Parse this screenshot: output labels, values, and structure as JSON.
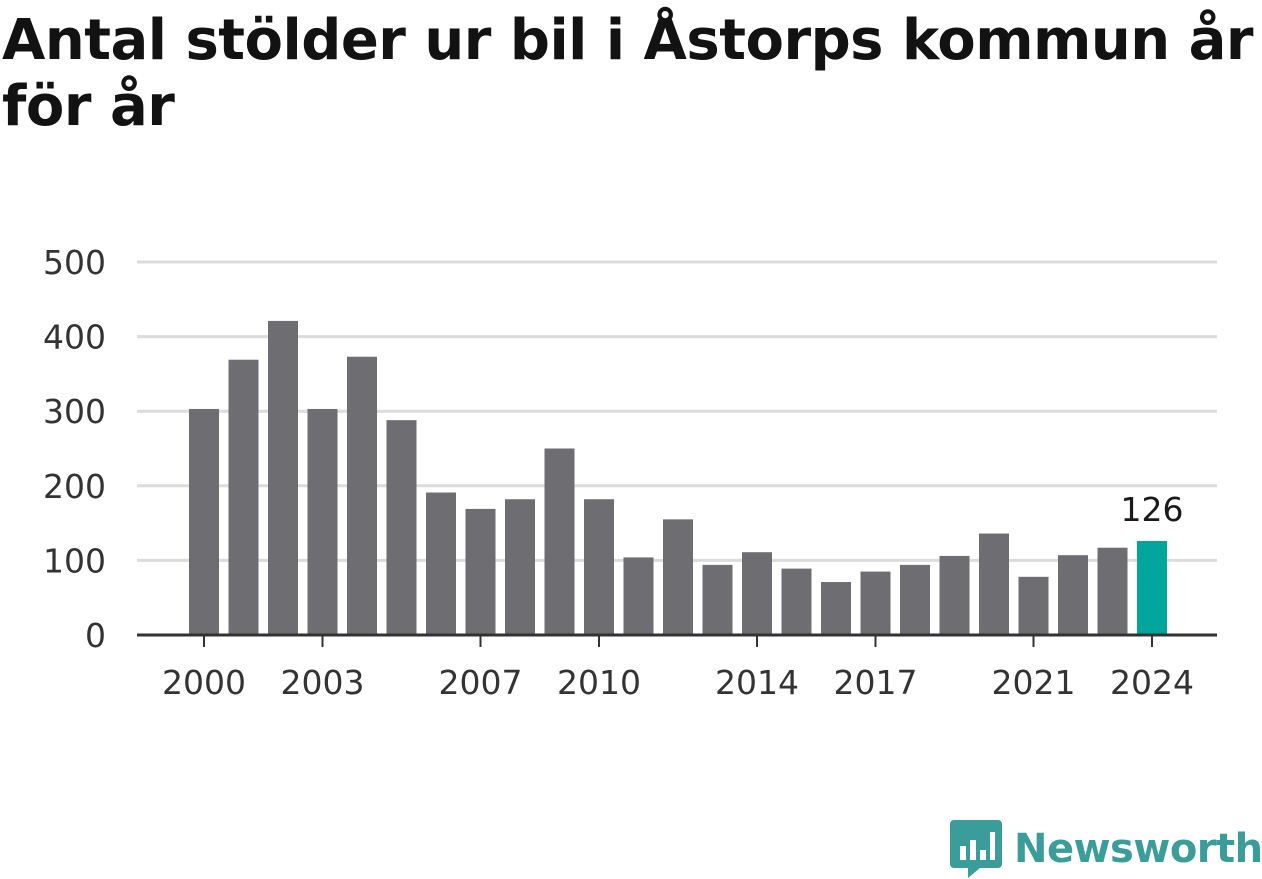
{
  "title": "Antal stölder ur bil i Åstorps kommun år för år",
  "brand": {
    "name": "Newsworthy"
  },
  "colors": {
    "bar": "#6e6d72",
    "highlight": "#00a69c",
    "grid": "#dcdcdc",
    "axis": "#333333",
    "tick_text": "#333333",
    "brand": "#3a9d99"
  },
  "chart_data": {
    "type": "bar",
    "title": "Antal stölder ur bil i Åstorps kommun år för år",
    "xlabel": "",
    "ylabel": "",
    "categories": [
      "2000",
      "2001",
      "2002",
      "2003",
      "2004",
      "2005",
      "2006",
      "2007",
      "2008",
      "2009",
      "2010",
      "2011",
      "2012",
      "2013",
      "2014",
      "2015",
      "2016",
      "2017",
      "2018",
      "2019",
      "2020",
      "2021",
      "2022",
      "2023",
      "2024"
    ],
    "values": [
      303,
      369,
      421,
      303,
      373,
      288,
      191,
      169,
      182,
      250,
      182,
      104,
      155,
      94,
      111,
      89,
      71,
      85,
      94,
      106,
      136,
      78,
      107,
      117,
      126
    ],
    "x_tick_labels": [
      "2000",
      "2003",
      "2007",
      "2010",
      "2014",
      "2017",
      "2021",
      "2024"
    ],
    "y_ticks": [
      0,
      100,
      200,
      300,
      400,
      500
    ],
    "ylim": [
      0,
      500
    ],
    "grid": true,
    "highlight_index": 24,
    "value_labels": {
      "2024": "126"
    }
  }
}
